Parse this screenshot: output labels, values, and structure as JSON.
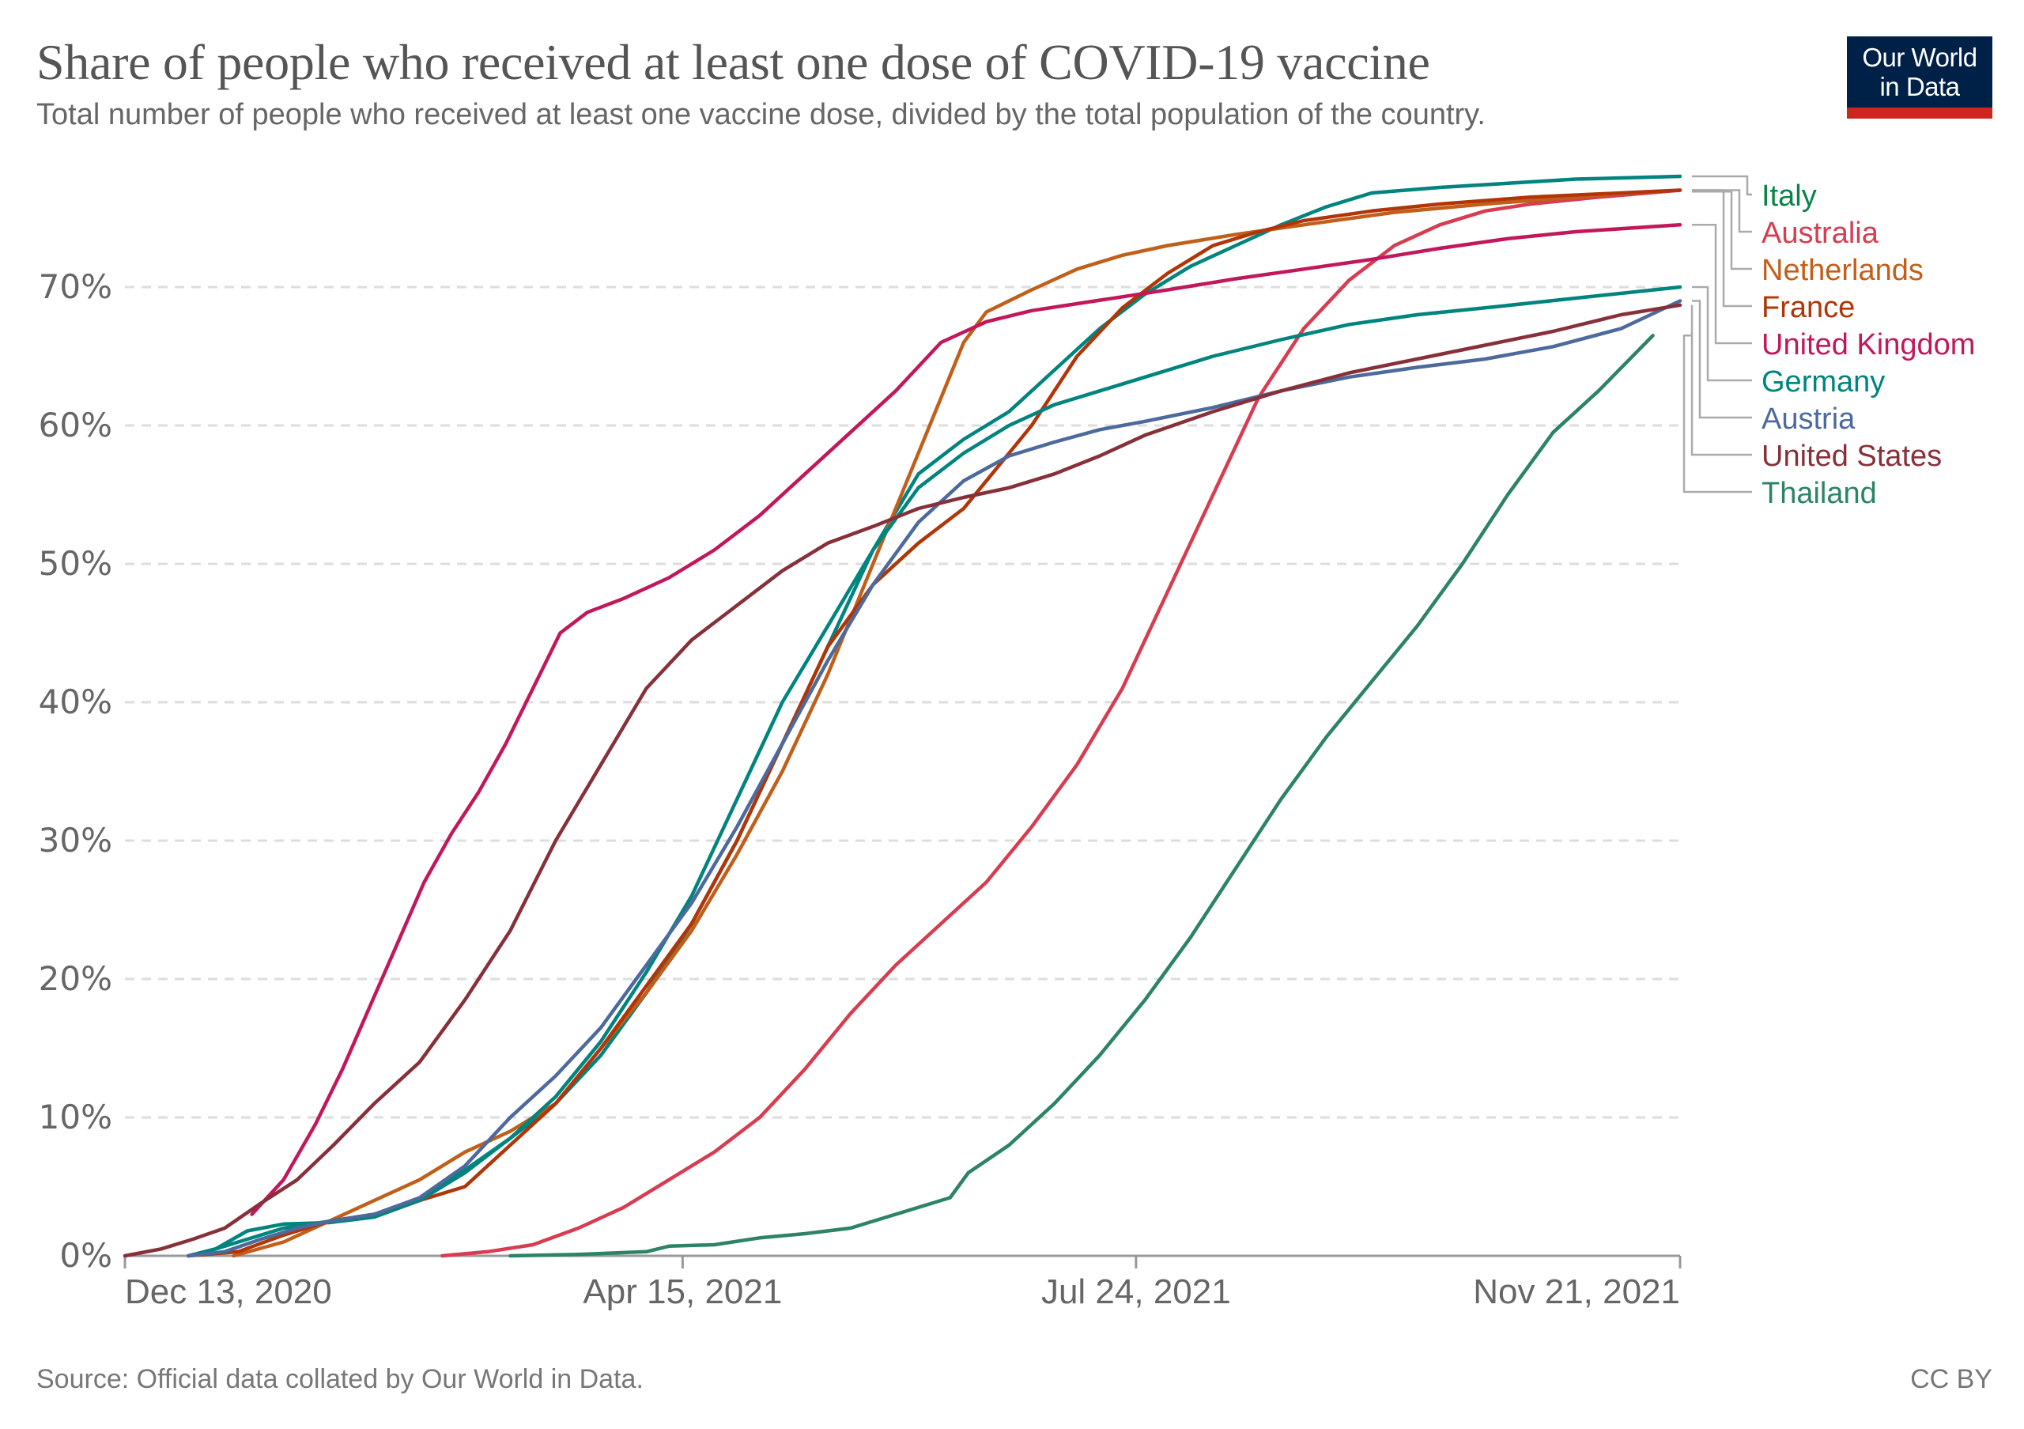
{
  "header": {
    "title": "Share of people who received at least one dose of COVID-19 vaccine",
    "subtitle": "Total number of people who received at least one vaccine dose, divided by the total population of the country.",
    "logo_line1": "Our World",
    "logo_line2": "in Data"
  },
  "footer": {
    "source": "Source: Official data collated by Our World in Data.",
    "license": "CC BY"
  },
  "chart_data": {
    "type": "line",
    "title": "Share of people who received at least one dose of COVID-19 vaccine",
    "xlabel": "",
    "ylabel": "",
    "x_unit": "days since Dec 13, 2020",
    "x_range": [
      0,
      343
    ],
    "ylim": [
      0,
      78
    ],
    "grid": true,
    "legend_placement": "right (line-end labels)",
    "x_ticks": [
      {
        "day": 0,
        "label": "Dec 13, 2020"
      },
      {
        "day": 123,
        "label": "Apr 15, 2021"
      },
      {
        "day": 223,
        "label": "Jul 24, 2021"
      },
      {
        "day": 343,
        "label": "Nov 21, 2021"
      }
    ],
    "y_ticks": [
      {
        "value": 0,
        "label": "0%"
      },
      {
        "value": 10,
        "label": "10%"
      },
      {
        "value": 20,
        "label": "20%"
      },
      {
        "value": 30,
        "label": "30%"
      },
      {
        "value": 40,
        "label": "40%"
      },
      {
        "value": 50,
        "label": "50%"
      },
      {
        "value": 60,
        "label": "60%"
      },
      {
        "value": 70,
        "label": "70%"
      }
    ],
    "series": [
      {
        "name": "Italy",
        "color": "#00847e",
        "label_color": "#0b8348",
        "points": [
          [
            14,
            0
          ],
          [
            20,
            0.5
          ],
          [
            27,
            1.8
          ],
          [
            35,
            2.3
          ],
          [
            45,
            2.4
          ],
          [
            55,
            2.8
          ],
          [
            65,
            4.0
          ],
          [
            75,
            6.2
          ],
          [
            85,
            8.5
          ],
          [
            95,
            11.0
          ],
          [
            105,
            14.5
          ],
          [
            115,
            19.0
          ],
          [
            125,
            24.0
          ],
          [
            135,
            30.0
          ],
          [
            145,
            37.0
          ],
          [
            155,
            44.0
          ],
          [
            165,
            51.0
          ],
          [
            175,
            56.5
          ],
          [
            185,
            59.0
          ],
          [
            195,
            61.0
          ],
          [
            205,
            64.0
          ],
          [
            215,
            67.0
          ],
          [
            225,
            69.5
          ],
          [
            235,
            71.5
          ],
          [
            245,
            73.0
          ],
          [
            255,
            74.5
          ],
          [
            265,
            75.8
          ],
          [
            275,
            76.8
          ],
          [
            290,
            77.2
          ],
          [
            305,
            77.5
          ],
          [
            320,
            77.8
          ],
          [
            343,
            78.0
          ]
        ]
      },
      {
        "name": "Australia",
        "color": "#d73c50",
        "label_color": "#d73c50",
        "points": [
          [
            70,
            0
          ],
          [
            80,
            0.3
          ],
          [
            90,
            0.8
          ],
          [
            100,
            2.0
          ],
          [
            110,
            3.5
          ],
          [
            120,
            5.5
          ],
          [
            130,
            7.5
          ],
          [
            140,
            10.0
          ],
          [
            150,
            13.5
          ],
          [
            160,
            17.5
          ],
          [
            170,
            21.0
          ],
          [
            180,
            24.0
          ],
          [
            190,
            27.0
          ],
          [
            200,
            31.0
          ],
          [
            210,
            35.5
          ],
          [
            220,
            41.0
          ],
          [
            230,
            48.0
          ],
          [
            240,
            55.0
          ],
          [
            250,
            62.0
          ],
          [
            260,
            67.0
          ],
          [
            270,
            70.5
          ],
          [
            280,
            73.0
          ],
          [
            290,
            74.5
          ],
          [
            300,
            75.5
          ],
          [
            310,
            76.0
          ],
          [
            325,
            76.5
          ],
          [
            343,
            77.0
          ]
        ]
      },
      {
        "name": "Netherlands",
        "color": "#c15f1a",
        "label_color": "#c15f1a",
        "points": [
          [
            24,
            0
          ],
          [
            35,
            1.0
          ],
          [
            45,
            2.5
          ],
          [
            55,
            4.0
          ],
          [
            65,
            5.5
          ],
          [
            75,
            7.5
          ],
          [
            85,
            9.0
          ],
          [
            95,
            11.0
          ],
          [
            105,
            15.0
          ],
          [
            115,
            19.0
          ],
          [
            125,
            23.5
          ],
          [
            135,
            29.0
          ],
          [
            145,
            35.0
          ],
          [
            155,
            42.0
          ],
          [
            165,
            50.0
          ],
          [
            175,
            58.0
          ],
          [
            185,
            66.0
          ],
          [
            190,
            68.2
          ],
          [
            200,
            69.8
          ],
          [
            210,
            71.3
          ],
          [
            220,
            72.3
          ],
          [
            230,
            73.0
          ],
          [
            245,
            73.8
          ],
          [
            260,
            74.5
          ],
          [
            280,
            75.4
          ],
          [
            300,
            76.0
          ],
          [
            320,
            76.5
          ],
          [
            336,
            76.9
          ]
        ]
      },
      {
        "name": "France",
        "color": "#b13507",
        "label_color": "#b13507",
        "points": [
          [
            14,
            0
          ],
          [
            25,
            0.3
          ],
          [
            35,
            1.5
          ],
          [
            45,
            2.5
          ],
          [
            55,
            3.0
          ],
          [
            65,
            4.0
          ],
          [
            75,
            5.0
          ],
          [
            85,
            8.0
          ],
          [
            95,
            11.0
          ],
          [
            105,
            15.0
          ],
          [
            115,
            19.5
          ],
          [
            125,
            24.0
          ],
          [
            135,
            30.0
          ],
          [
            145,
            37.0
          ],
          [
            155,
            44.0
          ],
          [
            165,
            48.5
          ],
          [
            175,
            51.5
          ],
          [
            185,
            54.0
          ],
          [
            195,
            58.0
          ],
          [
            200,
            60.0
          ],
          [
            210,
            65.0
          ],
          [
            220,
            68.5
          ],
          [
            230,
            71.0
          ],
          [
            240,
            73.0
          ],
          [
            250,
            74.0
          ],
          [
            260,
            74.8
          ],
          [
            275,
            75.5
          ],
          [
            290,
            76.0
          ],
          [
            310,
            76.5
          ],
          [
            330,
            76.8
          ],
          [
            343,
            77.0
          ]
        ]
      },
      {
        "name": "United Kingdom",
        "color": "#c2185b",
        "label_color": "#c2185b",
        "points": [
          [
            28,
            3.0
          ],
          [
            35,
            5.5
          ],
          [
            42,
            9.5
          ],
          [
            48,
            13.5
          ],
          [
            54,
            18.0
          ],
          [
            60,
            22.5
          ],
          [
            66,
            27.0
          ],
          [
            72,
            30.5
          ],
          [
            78,
            33.5
          ],
          [
            84,
            37.0
          ],
          [
            90,
            41.0
          ],
          [
            96,
            45.0
          ],
          [
            102,
            46.5
          ],
          [
            110,
            47.5
          ],
          [
            120,
            49.0
          ],
          [
            130,
            51.0
          ],
          [
            140,
            53.5
          ],
          [
            150,
            56.5
          ],
          [
            160,
            59.5
          ],
          [
            170,
            62.5
          ],
          [
            180,
            66.0
          ],
          [
            190,
            67.5
          ],
          [
            200,
            68.3
          ],
          [
            210,
            68.8
          ],
          [
            220,
            69.3
          ],
          [
            230,
            69.8
          ],
          [
            245,
            70.6
          ],
          [
            260,
            71.3
          ],
          [
            275,
            72.0
          ],
          [
            290,
            72.8
          ],
          [
            305,
            73.5
          ],
          [
            320,
            74.0
          ],
          [
            343,
            74.5
          ]
        ]
      },
      {
        "name": "Germany",
        "color": "#00847e",
        "label_color": "#00847e",
        "points": [
          [
            14,
            0
          ],
          [
            20,
            0.5
          ],
          [
            27,
            1.2
          ],
          [
            35,
            2.0
          ],
          [
            45,
            2.5
          ],
          [
            55,
            3.0
          ],
          [
            65,
            4.0
          ],
          [
            75,
            6.0
          ],
          [
            85,
            8.5
          ],
          [
            95,
            11.5
          ],
          [
            105,
            15.5
          ],
          [
            115,
            20.5
          ],
          [
            125,
            26.0
          ],
          [
            135,
            33.0
          ],
          [
            145,
            40.0
          ],
          [
            155,
            45.5
          ],
          [
            165,
            51.0
          ],
          [
            175,
            55.5
          ],
          [
            185,
            58.0
          ],
          [
            195,
            60.0
          ],
          [
            205,
            61.5
          ],
          [
            215,
            62.5
          ],
          [
            225,
            63.5
          ],
          [
            240,
            65.0
          ],
          [
            255,
            66.2
          ],
          [
            270,
            67.3
          ],
          [
            285,
            68.0
          ],
          [
            300,
            68.5
          ],
          [
            320,
            69.2
          ],
          [
            343,
            70.0
          ]
        ]
      },
      {
        "name": "Austria",
        "color": "#4c6a9c",
        "label_color": "#4c6a9c",
        "points": [
          [
            14,
            0
          ],
          [
            22,
            0.3
          ],
          [
            30,
            1.2
          ],
          [
            38,
            2.0
          ],
          [
            45,
            2.5
          ],
          [
            55,
            3.0
          ],
          [
            65,
            4.2
          ],
          [
            75,
            6.5
          ],
          [
            85,
            10.0
          ],
          [
            95,
            13.0
          ],
          [
            105,
            16.5
          ],
          [
            115,
            21.0
          ],
          [
            125,
            25.5
          ],
          [
            135,
            31.0
          ],
          [
            145,
            37.0
          ],
          [
            155,
            43.0
          ],
          [
            165,
            48.5
          ],
          [
            175,
            53.0
          ],
          [
            185,
            56.0
          ],
          [
            195,
            57.8
          ],
          [
            205,
            58.8
          ],
          [
            215,
            59.7
          ],
          [
            225,
            60.3
          ],
          [
            240,
            61.3
          ],
          [
            255,
            62.5
          ],
          [
            270,
            63.5
          ],
          [
            285,
            64.2
          ],
          [
            300,
            64.8
          ],
          [
            315,
            65.7
          ],
          [
            330,
            67.0
          ],
          [
            343,
            69.0
          ]
        ]
      },
      {
        "name": "United States",
        "color": "#883039",
        "label_color": "#883039",
        "points": [
          [
            0,
            0
          ],
          [
            8,
            0.5
          ],
          [
            15,
            1.2
          ],
          [
            22,
            2.0
          ],
          [
            30,
            3.8
          ],
          [
            38,
            5.5
          ],
          [
            46,
            8.0
          ],
          [
            55,
            11.0
          ],
          [
            65,
            14.0
          ],
          [
            75,
            18.5
          ],
          [
            85,
            23.5
          ],
          [
            95,
            30.0
          ],
          [
            105,
            35.5
          ],
          [
            115,
            41.0
          ],
          [
            125,
            44.5
          ],
          [
            135,
            47.0
          ],
          [
            145,
            49.5
          ],
          [
            155,
            51.5
          ],
          [
            165,
            52.7
          ],
          [
            175,
            54.0
          ],
          [
            185,
            54.8
          ],
          [
            195,
            55.5
          ],
          [
            205,
            56.5
          ],
          [
            215,
            57.8
          ],
          [
            225,
            59.3
          ],
          [
            240,
            61.0
          ],
          [
            255,
            62.5
          ],
          [
            270,
            63.8
          ],
          [
            285,
            64.8
          ],
          [
            300,
            65.8
          ],
          [
            315,
            66.8
          ],
          [
            330,
            68.0
          ],
          [
            343,
            68.7
          ]
        ]
      },
      {
        "name": "Thailand",
        "color": "#2c8465",
        "label_color": "#2c8465",
        "points": [
          [
            85,
            0
          ],
          [
            100,
            0.1
          ],
          [
            115,
            0.3
          ],
          [
            120,
            0.7
          ],
          [
            130,
            0.8
          ],
          [
            140,
            1.3
          ],
          [
            150,
            1.6
          ],
          [
            160,
            2.0
          ],
          [
            170,
            3.0
          ],
          [
            178,
            3.8
          ],
          [
            182,
            4.2
          ],
          [
            186,
            6.0
          ],
          [
            195,
            8.0
          ],
          [
            205,
            11.0
          ],
          [
            215,
            14.5
          ],
          [
            225,
            18.5
          ],
          [
            235,
            23.0
          ],
          [
            245,
            28.0
          ],
          [
            255,
            33.0
          ],
          [
            265,
            37.5
          ],
          [
            275,
            41.5
          ],
          [
            285,
            45.5
          ],
          [
            295,
            50.0
          ],
          [
            305,
            55.0
          ],
          [
            315,
            59.5
          ],
          [
            325,
            62.5
          ],
          [
            337,
            66.5
          ]
        ]
      }
    ]
  }
}
